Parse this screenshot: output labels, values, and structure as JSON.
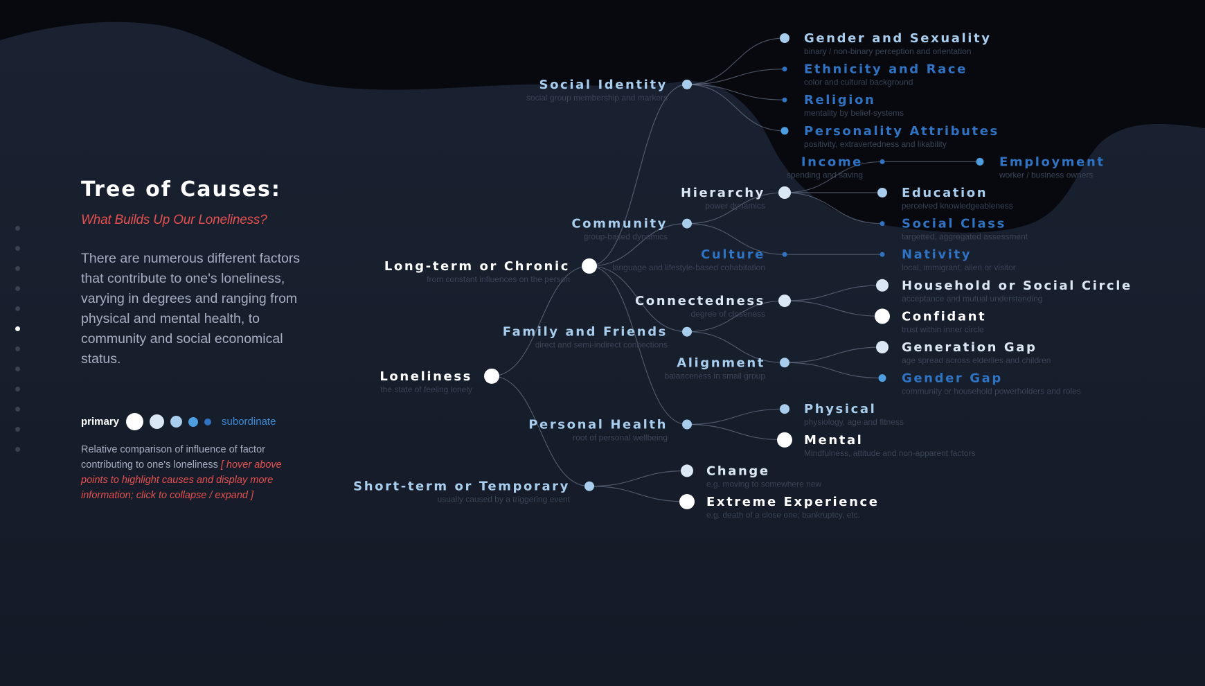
{
  "sidebar": {
    "dot_count": 12,
    "active_index": 5
  },
  "intro": {
    "title": "Tree of Causes:",
    "subtitle": "What Builds Up Our Loneliness?",
    "description": "There are numerous different factors that contribute to one's loneliness, varying in degrees and ranging from physical and mental health, to community and social economical status."
  },
  "legend": {
    "primary_label": "primary",
    "subordinate_label": "subordinate",
    "levels": [
      1,
      2,
      3,
      4,
      5
    ],
    "note": "Relative comparison of influence of factor contributing to one's loneliness",
    "hint": "[ hover above points to highlight causes and display more information; click to collapse / expand ]"
  },
  "colors": {
    "background": "#161d2b",
    "level_1": "#ffffff",
    "level_2": "#dbe7f5",
    "level_3": "#a9cdec",
    "level_4": "#4f9ee0",
    "level_5": "#2f73c2",
    "accent": "#e5504f"
  },
  "tree": {
    "name": "Loneliness",
    "desc": "the state of feeling lonely",
    "level": 1,
    "children": [
      {
        "name": "Long-term or Chronic",
        "desc": "from constant influences on the person",
        "level": 1,
        "children": [
          {
            "name": "Social Identity",
            "desc": "social group membership and markers",
            "level": 3,
            "children": [
              {
                "name": "Gender and Sexuality",
                "desc": "binary / non-binary perception and orientation",
                "level": 3
              },
              {
                "name": "Ethnicity and Race",
                "desc": "color and cultural background",
                "level": 5
              },
              {
                "name": "Religion",
                "desc": "mentality by belief-systems",
                "level": 5
              },
              {
                "name": "Personality Attributes",
                "desc": "positivity, extravertedness and likability",
                "level": 4
              }
            ]
          },
          {
            "name": "Community",
            "desc": "group-based dynamics",
            "level": 3,
            "children": [
              {
                "name": "Hierarchy",
                "desc": "power dynamics",
                "level": 2,
                "children": [
                  {
                    "name": "Income",
                    "desc": "spending and saving",
                    "level": 5,
                    "children": [
                      {
                        "name": "Employment",
                        "desc": "worker / business owners",
                        "level": 4
                      }
                    ]
                  },
                  {
                    "name": "Education",
                    "desc": "perceived knowledgeableness",
                    "level": 3
                  },
                  {
                    "name": "Social Class",
                    "desc": "targetted, aggregated assessment",
                    "level": 5
                  }
                ]
              },
              {
                "name": "Culture",
                "desc": "language and lifestyle-based cohabitation",
                "level": 5,
                "children": [
                  {
                    "name": "Nativity",
                    "desc": "local, immigrant, alien or visitor",
                    "level": 5
                  }
                ]
              }
            ]
          },
          {
            "name": "Family and Friends",
            "desc": "direct and semi-indirect connections",
            "level": 3,
            "children": [
              {
                "name": "Connectedness",
                "desc": "degree of closeness",
                "level": 2,
                "children": [
                  {
                    "name": "Household or Social Circle",
                    "desc": "acceptance and mutual understanding",
                    "level": 2
                  },
                  {
                    "name": "Confidant",
                    "desc": "trust within inner circle",
                    "level": 1
                  }
                ]
              },
              {
                "name": "Alignment",
                "desc": "balanceness in small group",
                "level": 3,
                "children": [
                  {
                    "name": "Generation Gap",
                    "desc": "age spread across elderlies and children",
                    "level": 2
                  },
                  {
                    "name": "Gender Gap",
                    "desc": "community or household powerholders and roles",
                    "level": 4
                  }
                ]
              }
            ]
          },
          {
            "name": "Personal Health",
            "desc": "root of personal wellbeing",
            "level": 3,
            "children": [
              {
                "name": "Physical",
                "desc": "physiology, age and fitness",
                "level": 3
              },
              {
                "name": "Mental",
                "desc": "Mindfulness, attitude and non-apparent factors",
                "level": 1
              }
            ]
          }
        ]
      },
      {
        "name": "Short-term or Temporary",
        "desc": "usually caused by a triggering event",
        "level": 3,
        "children": [
          {
            "name": "Change",
            "desc": "e.g. moving to somewhere new",
            "level": 2
          },
          {
            "name": "Extreme Experience",
            "desc": "e.g. death of a close one; bankruptcy, etc.",
            "level": 1
          }
        ]
      }
    ]
  }
}
